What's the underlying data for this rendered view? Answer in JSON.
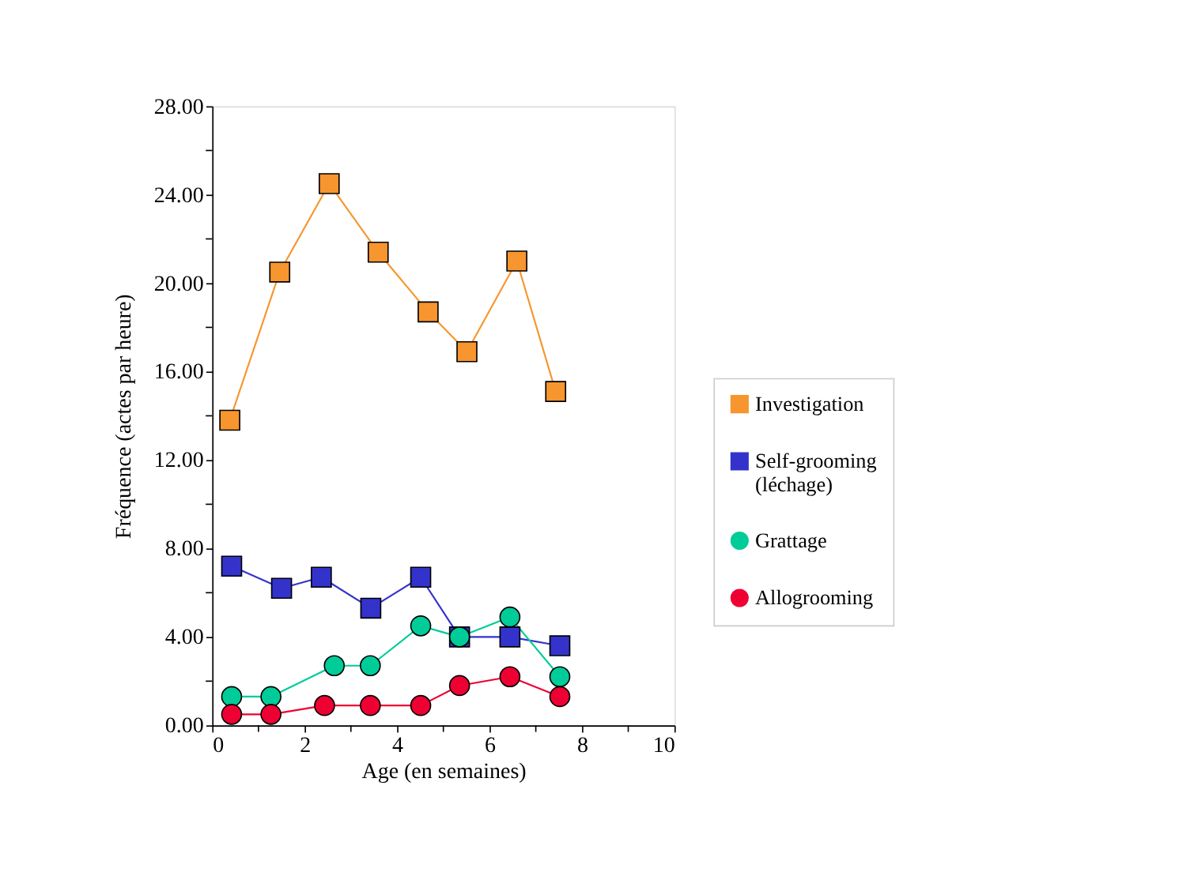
{
  "chart_data": {
    "type": "line",
    "xlabel": "Age (en semaines)",
    "ylabel": "Fréquence (actes par heure)",
    "xlim": [
      0,
      10
    ],
    "xticks": [
      0,
      {
        "value": 1,
        "label": null
      },
      2,
      {
        "value": 3,
        "label": null
      },
      4,
      {
        "value": 5,
        "label": null
      },
      6,
      {
        "value": 7,
        "label": null
      },
      8,
      {
        "value": 9,
        "label": null
      },
      10
    ],
    "ylim": [
      0,
      28
    ],
    "yticks": [
      {
        "value": 0,
        "label": "0.00"
      },
      {
        "value": 2,
        "label": null
      },
      {
        "value": 4,
        "label": "4.00"
      },
      {
        "value": 6,
        "label": null
      },
      {
        "value": 8,
        "label": "8.00"
      },
      {
        "value": 10,
        "label": null
      },
      {
        "value": 12,
        "label": "12.00"
      },
      {
        "value": 14,
        "label": null
      },
      {
        "value": 16,
        "label": "16.00"
      },
      {
        "value": 18,
        "label": null
      },
      {
        "value": 20,
        "label": "20.00"
      },
      {
        "value": 22,
        "label": null
      },
      {
        "value": 24,
        "label": "24.00"
      },
      {
        "value": 26,
        "label": null
      },
      {
        "value": 28,
        "label": "28.00"
      }
    ],
    "grid": false,
    "legend": "right",
    "line_style": "solid",
    "series": [
      {
        "name": "Investigation",
        "color": "#f7952e",
        "marker": "square",
        "x": [
          0.38,
          1.46,
          2.53,
          3.59,
          4.67,
          5.51,
          6.59,
          7.43
        ],
        "values": [
          13.8,
          20.5,
          24.5,
          21.4,
          18.7,
          16.9,
          21.0,
          15.1
        ]
      },
      {
        "name": "Self-grooming (léchage)",
        "color": "#3333cc",
        "marker": "square",
        "x": [
          0.42,
          1.5,
          2.36,
          3.43,
          4.51,
          5.35,
          6.44,
          7.52
        ],
        "values": [
          7.2,
          6.2,
          6.7,
          5.3,
          6.7,
          4.0,
          4.0,
          3.6
        ]
      },
      {
        "name": "Grattage",
        "color": "#00cc99",
        "marker": "circle",
        "x": [
          0.42,
          1.27,
          2.64,
          3.42,
          4.51,
          5.35,
          6.44,
          7.52
        ],
        "values": [
          1.3,
          1.3,
          2.7,
          2.7,
          4.5,
          4.0,
          4.9,
          2.2
        ]
      },
      {
        "name": "Allogrooming",
        "color": "#ee0033",
        "marker": "circle",
        "x": [
          0.42,
          1.27,
          2.43,
          3.42,
          4.51,
          5.35,
          6.44,
          7.52
        ],
        "values": [
          0.5,
          0.5,
          0.9,
          0.9,
          0.9,
          1.8,
          2.2,
          1.3
        ]
      }
    ]
  }
}
